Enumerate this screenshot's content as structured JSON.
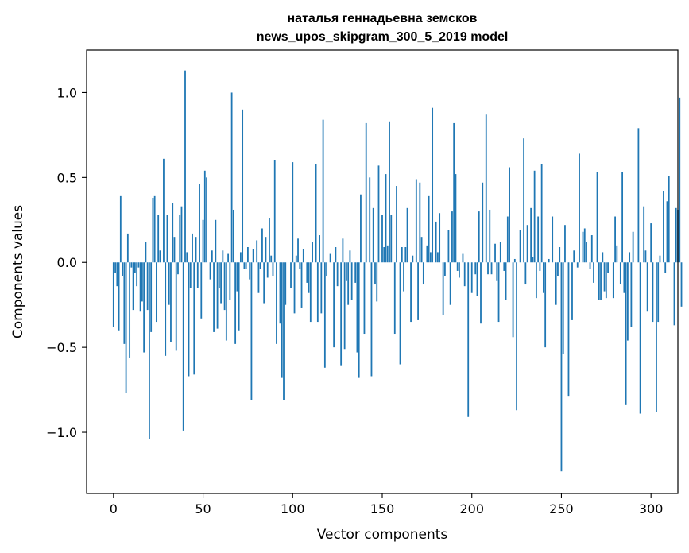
{
  "chart_data": {
    "type": "bar",
    "title": "наталья геннадьевна земсков\nnews_upos_skipgram_300_5_2019 model",
    "title_lines": [
      "наталья геннадьевна земсков",
      "news_upos_skipgram_300_5_2019 model"
    ],
    "xlabel": "Vector components",
    "ylabel": "Components values",
    "xlim": [
      -15,
      315
    ],
    "ylim": [
      -1.36,
      1.25
    ],
    "xticks": [
      0,
      50,
      100,
      150,
      200,
      250,
      300
    ],
    "xtick_labels": [
      "0",
      "50",
      "100",
      "150",
      "200",
      "250",
      "300"
    ],
    "yticks": [
      -1.0,
      -0.5,
      0.0,
      0.5,
      1.0
    ],
    "ytick_labels": [
      "−1.0",
      "−0.5",
      "0.0",
      "0.5",
      "1.0"
    ],
    "grid": false,
    "bar_color": "#1f77b4",
    "series": [
      {
        "x_start": 0,
        "values": [
          -0.38,
          -0.06,
          -0.14,
          -0.4,
          0.39,
          -0.08,
          -0.48,
          -0.77,
          0.17,
          -0.56,
          -0.03,
          -0.28,
          -0.06,
          -0.14,
          -0.03,
          -0.29,
          -0.23,
          -0.53,
          0.12,
          -0.28,
          -1.04,
          -0.41,
          0.38,
          0.39,
          -0.35,
          0.28,
          0.07,
          0.0,
          0.61,
          -0.55,
          0.28,
          -0.25,
          -0.47,
          0.35,
          0.15,
          -0.52,
          -0.07,
          0.28,
          0.33,
          -0.99,
          1.13,
          0.06,
          -0.67,
          -0.15,
          0.17,
          -0.66,
          0.15,
          -0.15,
          0.46,
          -0.33,
          0.25,
          0.54,
          0.5,
          0.0,
          -0.1,
          0.07,
          -0.41,
          0.25,
          -0.39,
          -0.15,
          -0.24,
          0.07,
          -0.28,
          -0.46,
          0.05,
          -0.22,
          1.0,
          0.31,
          -0.48,
          -0.17,
          -0.4,
          0.06,
          0.9,
          -0.04,
          -0.04,
          0.09,
          -0.1,
          -0.81,
          0.08,
          0.0,
          0.13,
          -0.18,
          -0.04,
          0.2,
          -0.24,
          0.15,
          -0.09,
          0.26,
          0.04,
          -0.08,
          0.6,
          -0.48,
          0.0,
          -0.36,
          -0.68,
          -0.81,
          -0.25,
          0.0,
          0.0,
          -0.15,
          0.59,
          -0.3,
          0.04,
          0.14,
          -0.04,
          -0.27,
          0.08,
          0.0,
          -0.12,
          -0.18,
          -0.35,
          0.12,
          0.0,
          0.58,
          -0.35,
          0.16,
          -0.3,
          0.84,
          -0.62,
          -0.08,
          0.0,
          0.05,
          0.0,
          -0.5,
          0.09,
          -0.14,
          0.0,
          -0.61,
          0.14,
          -0.51,
          -0.11,
          -0.25,
          0.07,
          -0.22,
          0.0,
          -0.12,
          -0.53,
          -0.68,
          0.4,
          0.0,
          -0.42,
          0.82,
          0.0,
          0.5,
          -0.67,
          0.32,
          -0.13,
          -0.23,
          0.57,
          0.0,
          0.28,
          0.09,
          0.52,
          0.1,
          0.83,
          0.28,
          0.0,
          -0.42,
          0.45,
          0.0,
          -0.6,
          0.09,
          -0.17,
          0.09,
          0.32,
          0.0,
          -0.35,
          0.04,
          0.0,
          0.49,
          -0.34,
          0.47,
          0.15,
          -0.13,
          0.0,
          0.1,
          0.39,
          0.06,
          0.91,
          0.0,
          0.24,
          0.06,
          0.29,
          0.0,
          -0.31,
          -0.08,
          0.0,
          0.19,
          -0.25,
          0.3,
          0.82,
          0.52,
          -0.05,
          -0.09,
          0.0,
          0.05,
          -0.14,
          0.0,
          -0.91,
          0.0,
          -0.18,
          0.0,
          -0.07,
          -0.2,
          0.3,
          -0.36,
          0.47,
          0.0,
          0.87,
          -0.07,
          0.31,
          -0.07,
          0.0,
          0.11,
          -0.11,
          -0.35,
          0.12,
          0.0,
          -0.05,
          -0.22,
          0.27,
          0.56,
          0.0,
          -0.44,
          0.02,
          -0.87,
          0.0,
          0.19,
          0.0,
          0.73,
          -0.13,
          0.22,
          0.0,
          0.32,
          0.03,
          0.54,
          -0.21,
          0.27,
          -0.05,
          0.58,
          -0.18,
          -0.5,
          0.0,
          0.02,
          0.0,
          0.27,
          0.0,
          -0.25,
          -0.08,
          0.09,
          -1.23,
          -0.54,
          0.22,
          0.0,
          -0.79,
          0.0,
          -0.34,
          0.07,
          0.0,
          -0.03,
          0.64,
          0.0,
          0.18,
          0.2,
          0.12,
          0.0,
          -0.04,
          0.16,
          -0.12,
          0.0,
          0.53,
          -0.22,
          -0.22,
          0.06,
          -0.17,
          -0.21,
          -0.06,
          0.0,
          0.0,
          -0.21,
          0.27,
          0.1,
          0.0,
          -0.13,
          0.53,
          -0.18,
          -0.84,
          -0.46,
          0.06,
          -0.38,
          0.18,
          0.0,
          0.0,
          0.79,
          -0.89,
          0.0,
          0.33,
          0.07,
          -0.29,
          0.0,
          0.23,
          -0.35,
          0.0,
          -0.88,
          -0.35,
          0.04,
          0.0,
          0.42,
          -0.06,
          0.36,
          0.51,
          0.0,
          0.0,
          -0.37,
          0.32,
          0.31,
          0.97,
          -0.26
        ]
      }
    ]
  }
}
